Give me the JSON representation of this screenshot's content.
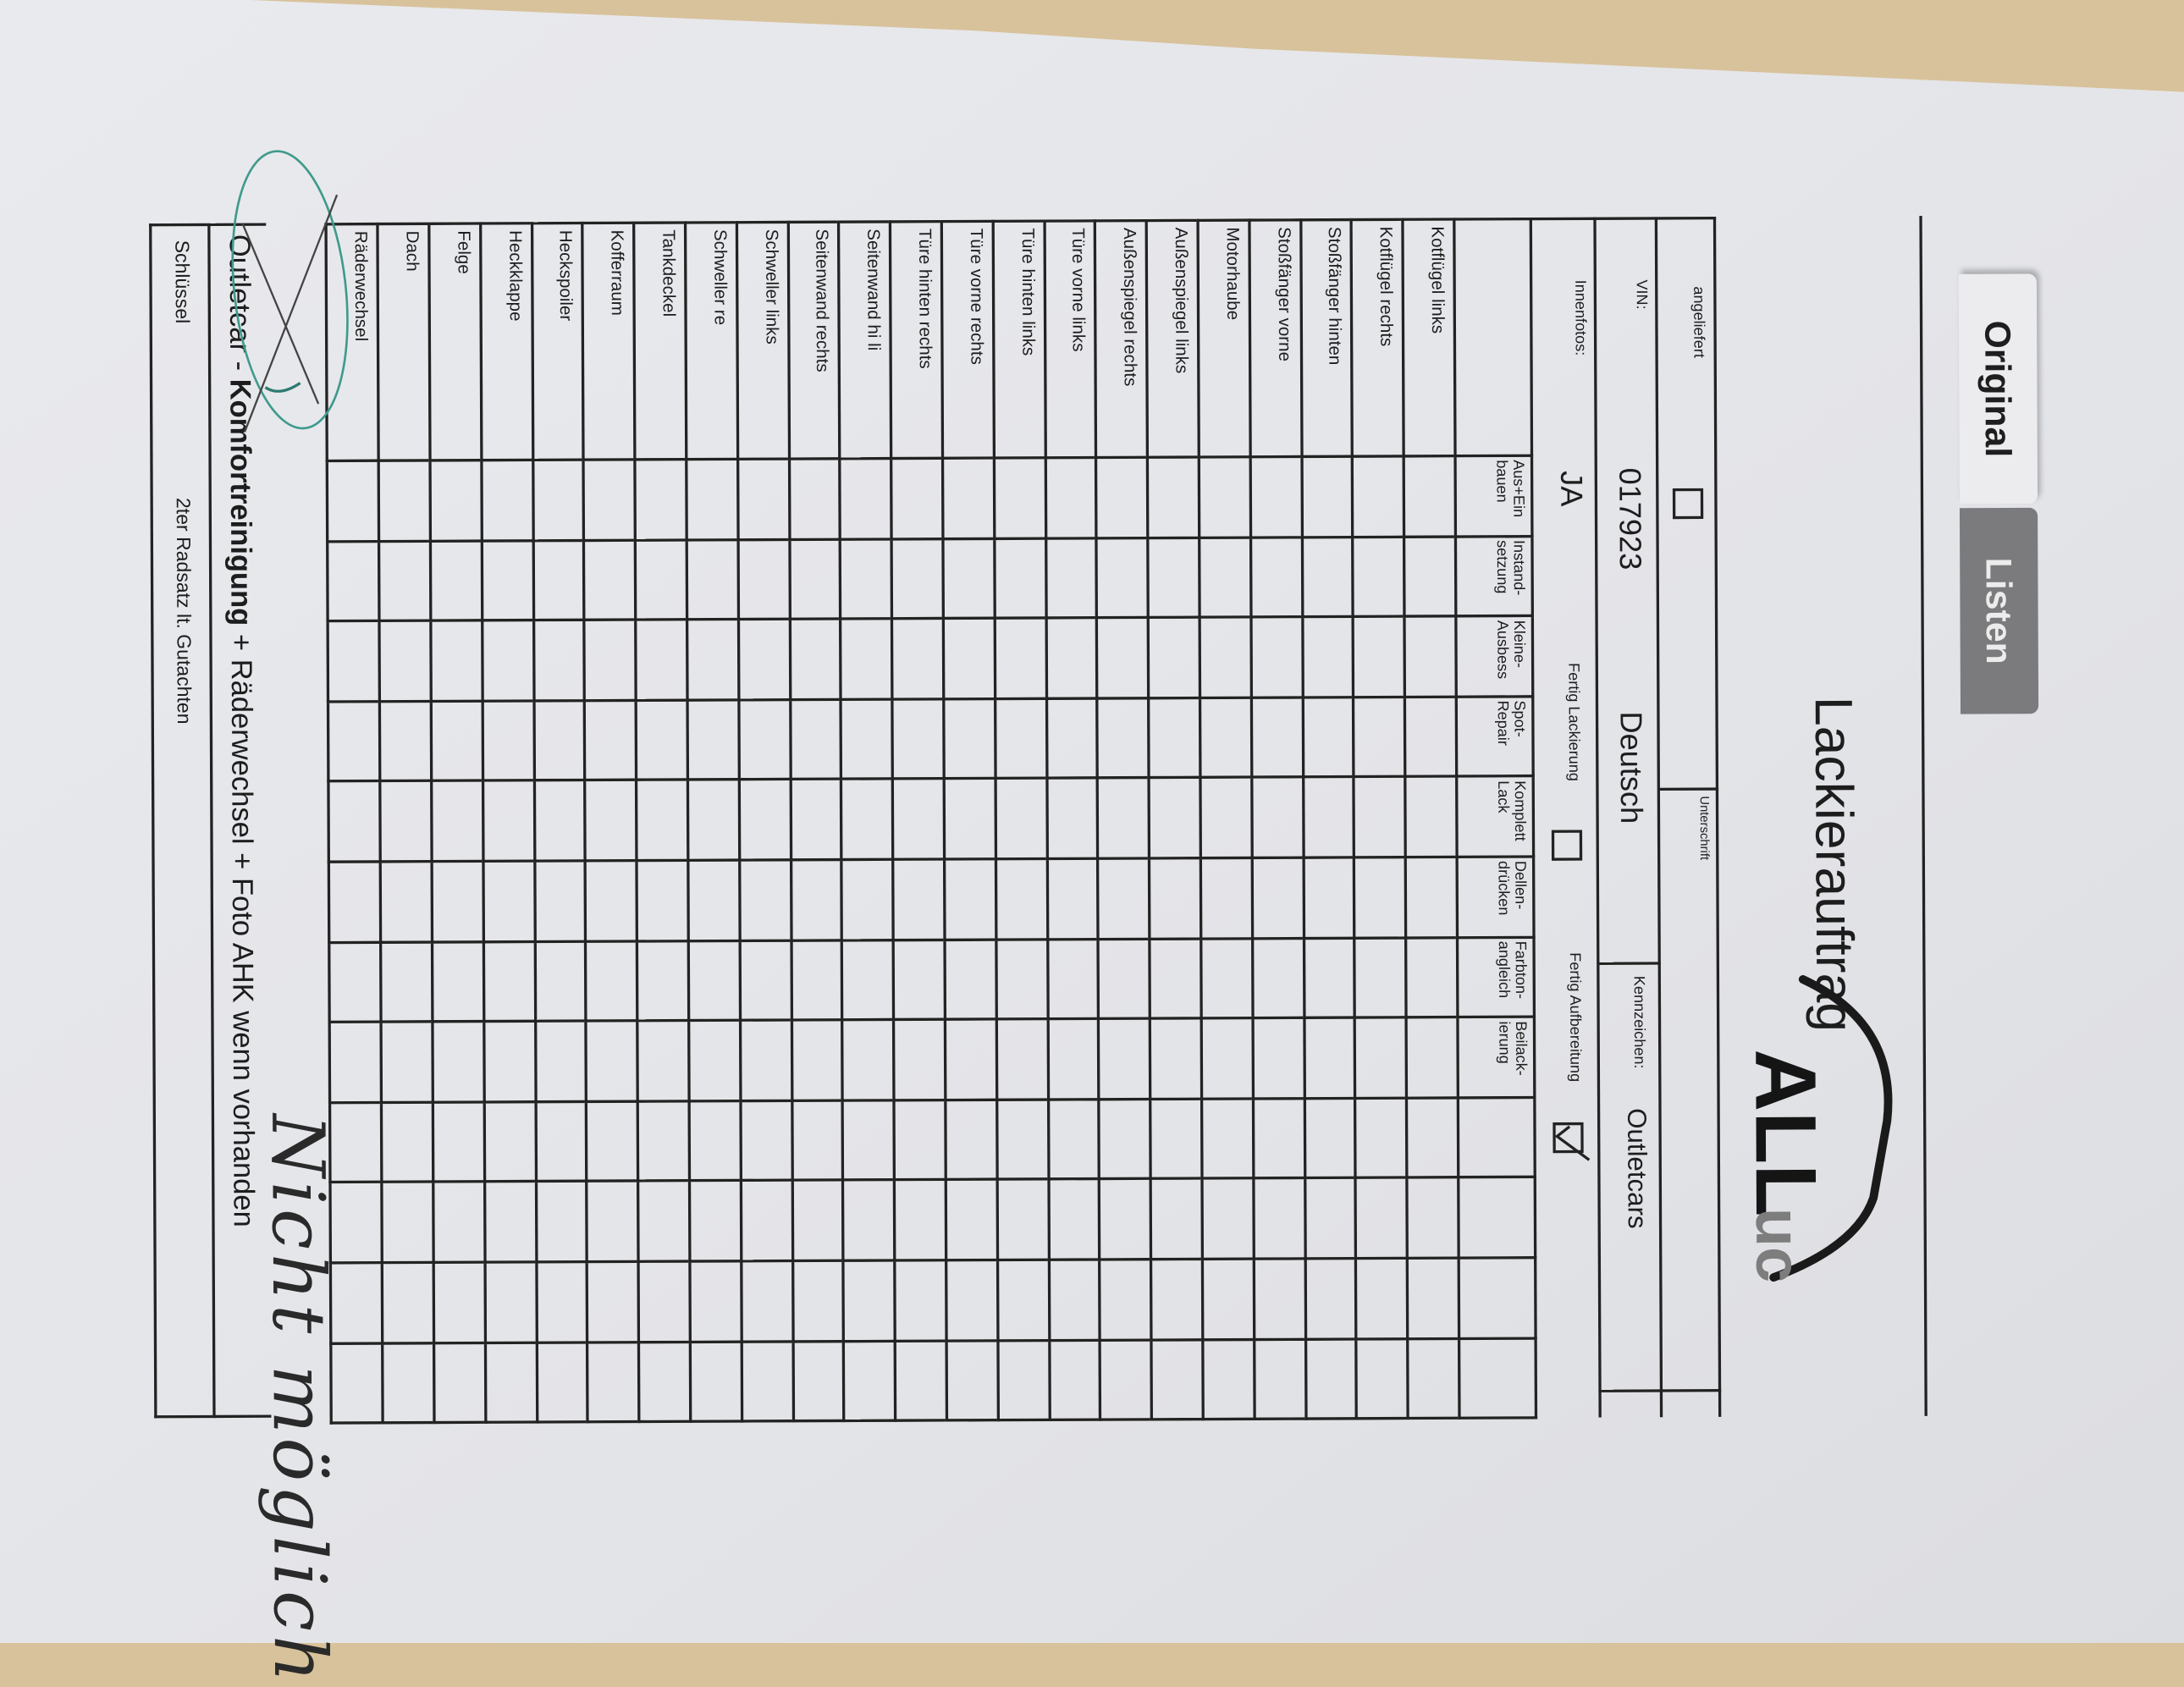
{
  "tabs": [
    {
      "label": "Original",
      "active": true
    },
    {
      "label": "Listen",
      "active": false
    }
  ],
  "header": {
    "title": "Lackierauftrag",
    "logo_text": "ALLuc"
  },
  "fields": {
    "angeliefert_label": "angeliefert",
    "angeliefert_checked": false,
    "unterschrift_label": "Unterschrift",
    "vin_label": "VIN:",
    "vin_value": "017923",
    "vin_country": "Deutsch",
    "kennzeichen_label": "Kennzeichen:",
    "kennzeichen_value": "Outletcars",
    "innenfotos_label": "Innenfotos:",
    "innenfotos_value": "JA",
    "fertig_lackierung_label": "Fertig Lackierung",
    "fertig_lackierung_checked": false,
    "fertig_aufbereitung_label": "Fertig Aufbereitung",
    "fertig_aufbereitung_checked": true
  },
  "columns": [
    "Aus+Ein bauen",
    "Instand-setzung",
    "Kleine-Ausbess",
    "Spot-Repair",
    "Komplett Lack",
    "Dellen-drücken",
    "Farbton-angleich",
    "Beilack-ierung",
    "",
    "",
    "",
    ""
  ],
  "rows": [
    "Kotflügel links",
    "Kotflügel rechts",
    "Stoßfänger hinten",
    "Stoßfänger vorne",
    "Motorhaube",
    "Außenspiegel links",
    "Außenspiegel rechts",
    "Türe vorne links",
    "Türe hinten links",
    "Türe vorne rechts",
    "Türe hinten rechts",
    "Seitenwand hi li",
    "Seitenwand  rechts",
    "Schweller links",
    "Schweller re",
    "Tankdeckel",
    "Kofferraum",
    "Heckspoiler",
    "Heckklappe",
    "Felge",
    "Dach",
    "Räderwechsel"
  ],
  "footer": {
    "outletcar_prefix": "Outletcar - ",
    "outletcar_bold": "Komfortreinigung",
    "outletcar_rest": " + Räderwechsel + Foto AHK wenn vorhanden",
    "schluessel_label": "Schlüssel",
    "schluessel_value": "2ter Radsatz lt. Gutachten"
  },
  "handwriting": {
    "raederwechsel_note": "Nicht möglich",
    "raederwechsel_crossed_out": true,
    "ink_color": "#3f9a8c"
  },
  "colors": {
    "paper": "#e6e7eb",
    "desk": "#d8c29b",
    "ink": "#1d1d1d"
  }
}
